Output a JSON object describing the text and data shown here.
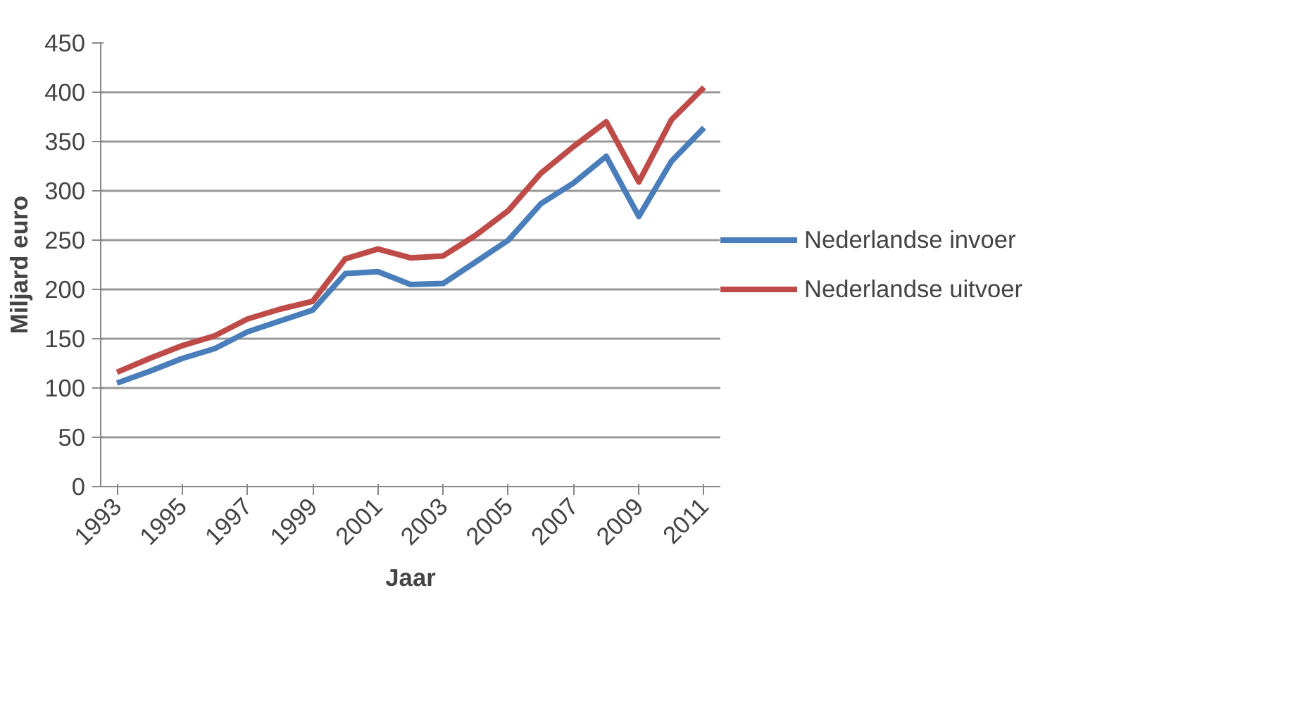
{
  "chart_data": {
    "type": "line",
    "xlabel": "Jaar",
    "ylabel": "Miljard euro",
    "categories": [
      "1993",
      null,
      "1995",
      null,
      "1997",
      null,
      "1999",
      null,
      "2001",
      null,
      "2003",
      null,
      "2005",
      null,
      "2007",
      null,
      "2009",
      null,
      "2011"
    ],
    "series": [
      {
        "name": "Nederlandse invoer",
        "color": "#4a7ebb",
        "values": [
          105,
          117,
          130,
          140,
          157,
          168,
          179,
          216,
          218,
          205,
          206,
          228,
          250,
          287,
          308,
          335,
          274,
          330,
          364
        ]
      },
      {
        "name": "Nederlandse uitvoer",
        "color": "#be4b48",
        "values": [
          116,
          130,
          143,
          153,
          170,
          180,
          188,
          231,
          241,
          232,
          234,
          255,
          280,
          318,
          345,
          370,
          309,
          372,
          405
        ]
      }
    ],
    "ylim": [
      0,
      450
    ],
    "yticks": [
      0,
      50,
      100,
      150,
      200,
      250,
      300,
      350,
      400,
      450
    ],
    "grid": "y",
    "legend": "right",
    "marker": "none",
    "line_style": "solid"
  }
}
